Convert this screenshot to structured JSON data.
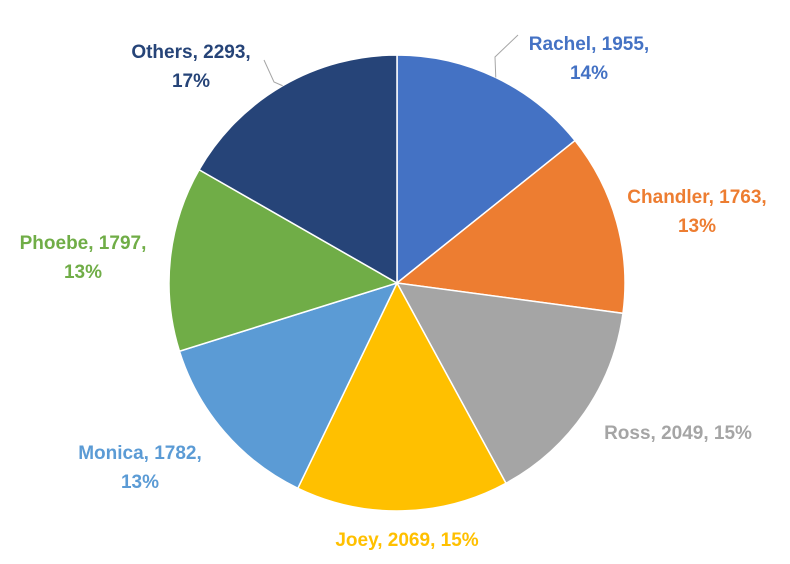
{
  "chart_data": {
    "type": "pie",
    "categories": [
      "Rachel",
      "Chandler",
      "Ross",
      "Joey",
      "Monica",
      "Phoebe",
      "Others"
    ],
    "values": [
      1955,
      1763,
      2049,
      2069,
      1782,
      1797,
      2293
    ],
    "percentages": [
      "14%",
      "13%",
      "15%",
      "15%",
      "13%",
      "13%",
      "17%"
    ],
    "colors": [
      "#4472C4",
      "#ED7D31",
      "#A5A5A5",
      "#FFC000",
      "#5B9BD5",
      "#70AD47",
      "#264478"
    ],
    "labels": [
      [
        "Rachel, 1955,",
        "14%"
      ],
      [
        "Chandler, 1763,",
        "13%"
      ],
      [
        "Ross, 2049, 15%"
      ],
      [
        "Joey, 2069, 15%"
      ],
      [
        "Monica, 1782,",
        "13%"
      ],
      [
        "Phoebe, 1797,",
        "13%"
      ],
      [
        "Others, 2293,",
        "17%"
      ]
    ],
    "start_angle": "12 o'clock",
    "direction": "clockwise",
    "legend": "none"
  }
}
